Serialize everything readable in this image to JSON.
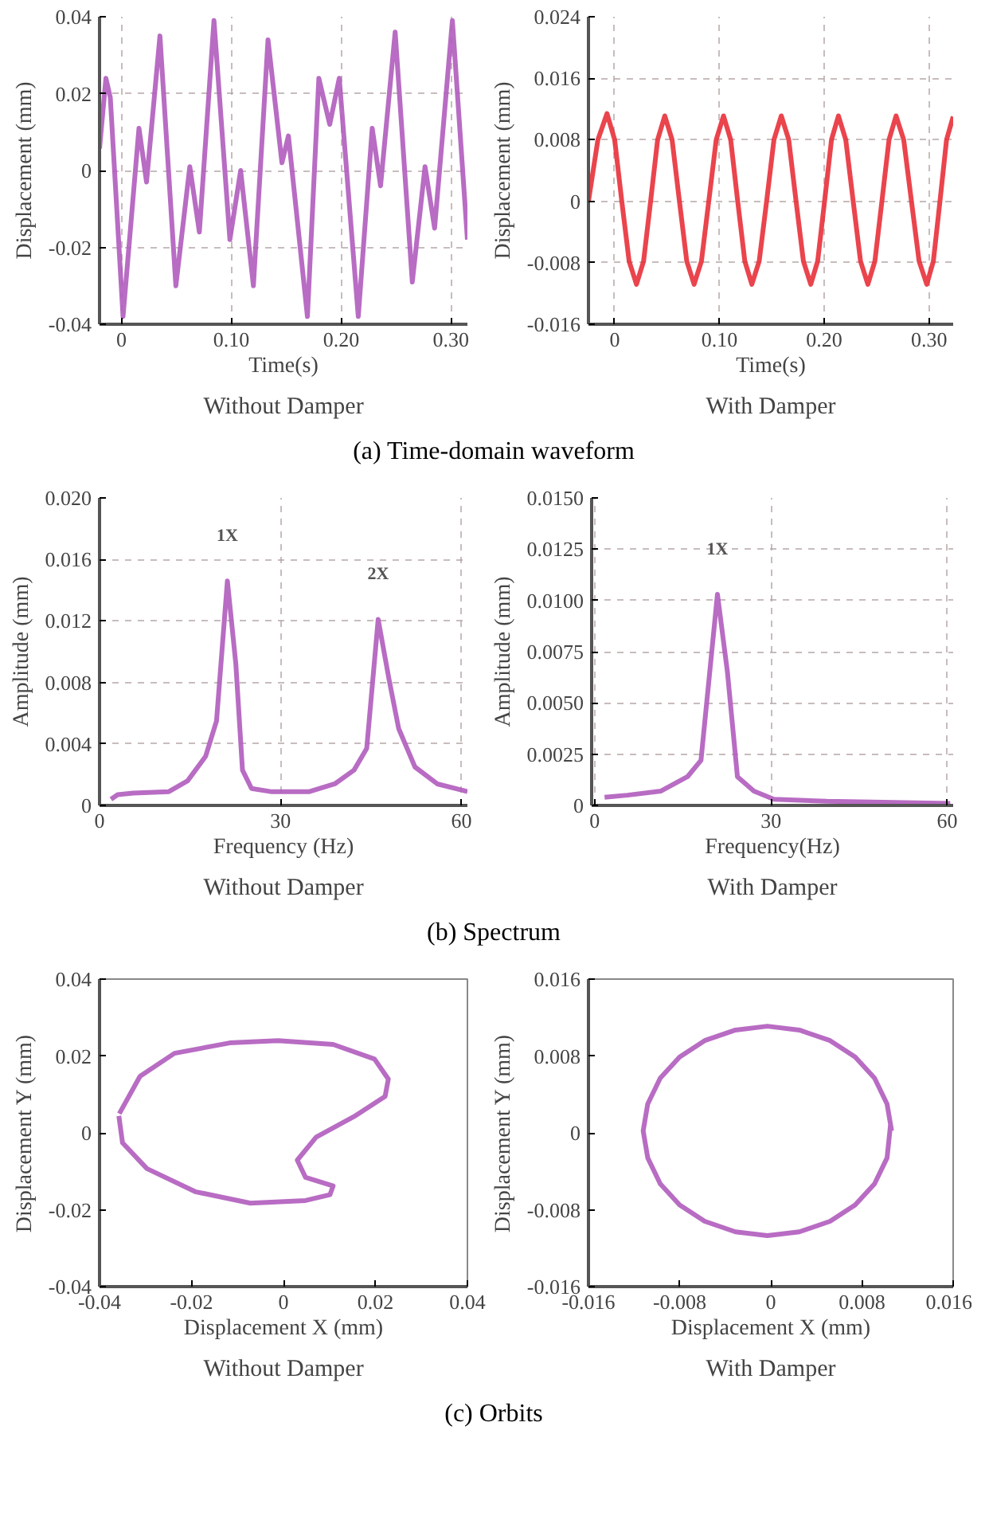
{
  "chart_data": [
    {
      "type": "line",
      "title": "Without Damper",
      "xlabel": "Time(s)",
      "ylabel": "Displacement (mm)",
      "annotations": [
        "(a) Time-domain waveform"
      ],
      "grid": true,
      "xlim": [
        -0.02,
        0.315
      ],
      "ylim": [
        -0.04,
        0.04
      ],
      "xticks": [
        0,
        {
          "value": 0.1,
          "label": "0.10"
        },
        {
          "value": 0.2,
          "label": "0.20"
        },
        {
          "value": 0.3,
          "label": "0.30"
        }
      ],
      "yticks": [
        -0.04,
        -0.02,
        0,
        0.02,
        0.04
      ],
      "series": [
        {
          "color": "#b05cbc",
          "x": [
            -0.02,
            -0.0142,
            -0.0102,
            0.0014,
            0.0159,
            0.0228,
            0.035,
            0.0495,
            0.0622,
            0.0709,
            0.0842,
            0.0987,
            0.1085,
            0.1201,
            0.1334,
            0.1461,
            0.152,
            0.1693,
            0.1797,
            0.1896,
            0.1983,
            0.2156,
            0.2283,
            0.2359,
            0.2492,
            0.2648,
            0.2764,
            0.2851,
            0.3013,
            0.315
          ],
          "values": [
            0.0057,
            0.024,
            0.019,
            -0.038,
            0.011,
            -0.003,
            0.035,
            -0.03,
            0.001,
            -0.016,
            0.039,
            -0.018,
            0.0,
            -0.03,
            0.034,
            0.002,
            0.009,
            -0.038,
            0.024,
            0.012,
            0.024,
            -0.038,
            0.011,
            -0.004,
            0.036,
            -0.029,
            0.001,
            -0.015,
            0.039,
            -0.018
          ]
        }
      ]
    },
    {
      "type": "line",
      "title": "With Damper",
      "xlabel": "Time(s)",
      "ylabel": "Displacement (mm)",
      "grid": true,
      "xlim": [
        -0.025,
        0.323
      ],
      "ylim": [
        -0.016,
        0.024
      ],
      "xticks": [
        0,
        {
          "value": 0.1,
          "label": "0.10"
        },
        {
          "value": 0.2,
          "label": "0.20"
        },
        {
          "value": 0.3,
          "label": "0.30"
        }
      ],
      "yticks": [
        -0.016,
        -0.008,
        0,
        0.008,
        0.016,
        0.024
      ],
      "series": [
        {
          "color": "#e8303a",
          "x": [
            -0.025,
            -0.016,
            -0.0073,
            0.0,
            0.0068,
            0.0138,
            0.0208,
            0.0276,
            0.0343,
            0.041,
            0.0478,
            0.0548,
            0.0618,
            0.0688,
            0.0758,
            0.0828,
            0.0898,
            0.0969,
            0.1039,
            0.1107,
            0.1174,
            0.1242,
            0.1309,
            0.1379,
            0.145,
            0.152,
            0.159,
            0.1661,
            0.1731,
            0.1801,
            0.1871,
            0.1937,
            0.2003,
            0.2069,
            0.2135,
            0.2205,
            0.2276,
            0.2346,
            0.2416,
            0.2483,
            0.255,
            0.2618,
            0.2685,
            0.2758,
            0.2832,
            0.2905,
            0.2978,
            0.3041,
            0.3104,
            0.3167,
            0.323
          ],
          "values": [
            0,
            0.008,
            0.0114,
            0.008,
            0,
            -0.0078,
            -0.0108,
            -0.0078,
            0,
            0.008,
            0.0111,
            0.008,
            0,
            -0.0078,
            -0.0108,
            -0.0078,
            0,
            0.008,
            0.0111,
            0.008,
            0,
            -0.0078,
            -0.0108,
            -0.0078,
            0,
            0.008,
            0.0111,
            0.008,
            0,
            -0.0078,
            -0.0108,
            -0.0078,
            0,
            0.008,
            0.0111,
            0.008,
            0,
            -0.0078,
            -0.0108,
            -0.0078,
            0,
            0.008,
            0.0111,
            0.008,
            0,
            -0.0078,
            -0.0108,
            -0.0078,
            0,
            0.008,
            0.011
          ]
        }
      ]
    },
    {
      "type": "line",
      "title": "Without Damper",
      "xlabel": "Frequency (Hz)",
      "ylabel": "Amplitude (mm)",
      "annotations": [
        "(b) Spectrum",
        {
          "text": "1X",
          "x": 21.2,
          "y": 0.0146
        },
        {
          "text": "2X",
          "x": 46.2,
          "y": 0.0121
        }
      ],
      "grid": true,
      "xlim": [
        0,
        61
      ],
      "ylim": [
        0,
        0.02
      ],
      "xticks": [
        0,
        30,
        60
      ],
      "yticks": [
        0,
        0.004,
        0.008,
        0.012,
        0.016,
        {
          "value": 0.02,
          "label": "0.020"
        }
      ],
      "series": [
        {
          "color": "#b05cbc",
          "x": [
            1.9,
            3,
            5.6,
            11.5,
            14.6,
            17.6,
            19.4,
            21.2,
            22.6,
            23.7,
            25.2,
            28.4,
            34.8,
            39,
            42.2,
            44.3,
            46.2,
            48,
            49.6,
            52.3,
            56,
            60,
            61
          ],
          "values": [
            0.0004,
            0.0007,
            0.0008,
            0.0009,
            0.0016,
            0.0032,
            0.0055,
            0.0146,
            0.0092,
            0.0023,
            0.0011,
            0.0009,
            0.0009,
            0.0014,
            0.0023,
            0.0037,
            0.0121,
            0.0082,
            0.005,
            0.0025,
            0.0014,
            0.001,
            0.0009
          ]
        }
      ]
    },
    {
      "type": "line",
      "title": "With Damper",
      "xlabel": "Frequency(Hz)",
      "ylabel": "Amplitude (mm)",
      "annotations": [
        {
          "text": "1X",
          "x": 20.9,
          "y": 0.0103
        }
      ],
      "grid": true,
      "xlim": [
        -0.5,
        61
      ],
      "ylim": [
        0,
        0.015
      ],
      "xticks": [
        0,
        30,
        60
      ],
      "yticks": [
        0,
        {
          "value": 0.0025,
          "label": "0.0025"
        },
        {
          "value": 0.005,
          "label": "0.0050"
        },
        {
          "value": 0.0075,
          "label": "0.0075"
        },
        {
          "value": 0.01,
          "label": "0.0100"
        },
        {
          "value": 0.0125,
          "label": "0.0125"
        },
        {
          "value": 0.015,
          "label": "0.0150"
        }
      ],
      "series": [
        {
          "color": "#b05cbc",
          "x": [
            1.7,
            5.6,
            11.3,
            15.8,
            18.1,
            20.9,
            22.6,
            24.3,
            27.1,
            30.5,
            39.5,
            60.5
          ],
          "values": [
            0.0004,
            0.0005,
            0.0007,
            0.0014,
            0.0022,
            0.0103,
            0.0065,
            0.0014,
            0.0007,
            0.0003,
            0.0002,
            0.0001
          ]
        }
      ]
    },
    {
      "type": "line",
      "title": "Without Damper",
      "xlabel": "Displacement X (mm)",
      "ylabel": "Displacement Y (mm)",
      "annotations": [
        "(c) Orbits"
      ],
      "xlim": [
        -0.04,
        0.04
      ],
      "ylim": [
        -0.04,
        0.04
      ],
      "xticks": [
        -0.04,
        -0.02,
        0,
        0.02,
        0.04
      ],
      "yticks": [
        -0.04,
        -0.02,
        0,
        0.02,
        0.04
      ],
      "series": [
        {
          "color": "#b05cbc",
          "x": [
            -0.0357,
            -0.0312,
            -0.0237,
            -0.0117,
            -0.0012,
            0.0108,
            0.0198,
            0.0228,
            0.0221,
            0.0153,
            0.0071,
            0.003,
            0.0048,
            0.0108,
            0.0101,
            0.0048,
            -0.0072,
            -0.0192,
            -0.0297,
            -0.035,
            -0.0358
          ],
          "values": [
            0.005,
            0.0147,
            0.0207,
            0.0234,
            0.024,
            0.023,
            0.0192,
            0.014,
            0.0095,
            0.0042,
            -0.0011,
            -0.0071,
            -0.0116,
            -0.0138,
            -0.0161,
            -0.0176,
            -0.0183,
            -0.0153,
            -0.0093,
            -0.0026,
            0.0044
          ]
        }
      ]
    },
    {
      "type": "line",
      "title": "With Damper",
      "xlabel": "Displacement X (mm)",
      "ylabel": "Displacement Y (mm)",
      "xlim": [
        -0.016,
        0.016
      ],
      "ylim": [
        -0.016,
        0.016
      ],
      "xticks": [
        -0.016,
        -0.008,
        0,
        0.008,
        0.016
      ],
      "yticks": [
        -0.016,
        -0.008,
        0,
        0.008,
        0.016
      ],
      "series": [
        {
          "color": "#b05cbc",
          "x": [
            0.0106,
            0.0102,
            0.0091,
            0.0074,
            0.0052,
            0.0025,
            -0.0003,
            -0.0031,
            -0.0058,
            -0.008,
            -0.0097,
            -0.0108,
            -0.0112,
            -0.0108,
            -0.0097,
            -0.008,
            -0.0058,
            -0.0031,
            -0.0003,
            0.0025,
            0.0052,
            0.0074,
            0.0091,
            0.0102,
            0.0105
          ],
          "values": [
            0.0002,
            0.003,
            0.0057,
            0.0079,
            0.0096,
            0.0107,
            0.0111,
            0.0107,
            0.0096,
            0.0079,
            0.0057,
            0.003,
            0.0002,
            -0.0026,
            -0.0053,
            -0.0075,
            -0.0092,
            -0.0103,
            -0.0107,
            -0.0103,
            -0.0092,
            -0.0075,
            -0.0053,
            -0.0026,
            0.0008
          ]
        }
      ]
    }
  ]
}
